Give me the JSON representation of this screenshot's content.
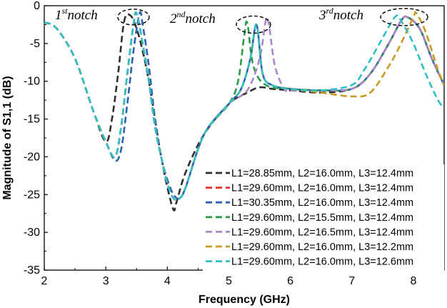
{
  "chart_data": {
    "type": "line",
    "xlabel": "Frequency (GHz)",
    "ylabel": "Magnitude of S1,1 (dB)",
    "xlim": [
      2,
      8.5
    ],
    "ylim": [
      -35,
      0
    ],
    "x_ticks": [
      "2",
      "3",
      "4",
      "5",
      "6",
      "7",
      "8"
    ],
    "y_ticks": [
      "0",
      "-5",
      "-10",
      "-15",
      "-20",
      "-25",
      "-30",
      "-35"
    ],
    "grid": false,
    "legend_position": "bottom-right",
    "line_style": "dashed",
    "annotations": [
      {
        "base": "1",
        "sup": "st",
        "text": "notch"
      },
      {
        "base": "2",
        "sup": "nd",
        "text": "notch"
      },
      {
        "base": "3",
        "sup": "rd",
        "text": "notch"
      }
    ],
    "series": [
      {
        "name": "L1=28.85mm, L2=16.0mm, L3=12.4mm",
        "color": "#2f2f2f",
        "x": [
          2.0,
          2.2,
          2.5,
          2.8,
          3.0,
          3.1,
          3.2,
          3.3,
          3.4,
          3.5,
          3.6,
          3.7,
          3.8,
          3.9,
          4.0,
          4.1,
          4.15,
          4.3,
          4.6,
          5.0,
          5.3,
          5.5,
          5.7,
          6.0,
          6.5,
          7.0,
          7.3,
          7.6,
          7.8,
          7.9,
          8.1,
          8.3,
          8.5
        ],
        "y": [
          -2.2,
          -3,
          -7,
          -14,
          -18,
          -15,
          -9,
          -2,
          -1.3,
          -3,
          -6,
          -10,
          -15,
          -20,
          -24,
          -27,
          -26,
          -22,
          -17,
          -13,
          -11.5,
          -10.8,
          -11,
          -11.2,
          -11.5,
          -11,
          -9,
          -5,
          -2,
          -1.5,
          -3,
          -7,
          -10.5
        ]
      },
      {
        "name": "L1=29.60mm, L2=16.0mm, L3=12.4mm",
        "color": "#e8312a",
        "x": [
          2.0,
          2.2,
          2.5,
          2.8,
          3.0,
          3.15,
          3.25,
          3.35,
          3.45,
          3.5,
          3.6,
          3.7,
          3.8,
          3.9,
          4.0,
          4.1,
          4.2,
          4.3,
          4.6,
          5.0,
          5.2,
          5.35,
          5.45,
          5.55,
          5.7,
          6.0,
          6.5,
          7.0,
          7.3,
          7.6,
          7.8,
          7.9,
          8.1,
          8.3,
          8.5
        ],
        "y": [
          -2.2,
          -3,
          -7,
          -14,
          -18,
          -20,
          -16,
          -9,
          -2.5,
          -1,
          -5,
          -10,
          -16,
          -20,
          -23.5,
          -25.5,
          -25.5,
          -24,
          -17,
          -13,
          -11,
          -7,
          -2.5,
          -9,
          -10.5,
          -11,
          -11.2,
          -11,
          -9,
          -5,
          -2,
          -1.5,
          -3,
          -7,
          -10.5
        ]
      },
      {
        "name": "L1=30.35mm, L2=16.0mm, L3=12.4mm",
        "color": "#2e5fb3",
        "x": [
          2.0,
          2.2,
          2.5,
          2.8,
          3.0,
          3.15,
          3.25,
          3.35,
          3.45,
          3.55,
          3.6,
          3.7,
          3.8,
          3.9,
          4.0,
          4.1,
          4.2,
          4.3,
          4.6,
          5.0,
          5.2,
          5.35,
          5.45,
          5.55,
          5.7,
          6.0,
          6.5,
          7.0,
          7.3,
          7.6,
          7.8,
          7.9,
          8.1,
          8.3,
          8.5
        ],
        "y": [
          -2.2,
          -3,
          -7,
          -14,
          -18,
          -20.5,
          -19,
          -13,
          -6,
          -1,
          -2.5,
          -8,
          -15,
          -20,
          -23,
          -25,
          -25.5,
          -24,
          -17,
          -13,
          -11,
          -7,
          -2.5,
          -9,
          -10.5,
          -11,
          -11.2,
          -11,
          -9,
          -5,
          -2,
          -1.5,
          -3,
          -7,
          -10.5
        ]
      },
      {
        "name": "L1=29.60mm, L2=15.5mm, L3=12.4mm",
        "color": "#2d9a4a",
        "x": [
          2.0,
          2.2,
          2.5,
          2.8,
          3.0,
          3.15,
          3.25,
          3.35,
          3.45,
          3.5,
          3.6,
          3.7,
          3.8,
          3.9,
          4.0,
          4.1,
          4.2,
          4.3,
          4.6,
          5.0,
          5.15,
          5.25,
          5.3,
          5.4,
          5.6,
          6.0,
          6.5,
          7.0,
          7.3,
          7.6,
          7.8,
          7.9,
          8.1,
          8.3,
          8.5
        ],
        "y": [
          -2.2,
          -3,
          -7,
          -14,
          -18,
          -20,
          -16,
          -9,
          -2.5,
          -1,
          -5,
          -10,
          -16,
          -20,
          -23.5,
          -25.5,
          -25.5,
          -24,
          -17,
          -13,
          -10,
          -4,
          -2.3,
          -8,
          -10.5,
          -11,
          -11.2,
          -11,
          -9,
          -5,
          -2,
          -1.5,
          -3,
          -7,
          -10.5
        ]
      },
      {
        "name": "L1=29.60mm, L2=16.5mm, L3=12.4mm",
        "color": "#a987c8",
        "x": [
          2.0,
          2.2,
          2.5,
          2.8,
          3.0,
          3.15,
          3.25,
          3.35,
          3.45,
          3.5,
          3.6,
          3.7,
          3.8,
          3.9,
          4.0,
          4.1,
          4.2,
          4.3,
          4.6,
          5.0,
          5.3,
          5.5,
          5.6,
          5.65,
          5.75,
          5.9,
          6.0,
          6.5,
          7.0,
          7.3,
          7.6,
          7.8,
          7.9,
          8.1,
          8.3,
          8.5
        ],
        "y": [
          -2.2,
          -3,
          -7,
          -14,
          -18,
          -20,
          -16,
          -9,
          -2.5,
          -1,
          -5,
          -10,
          -16,
          -20,
          -23.5,
          -25.5,
          -25.5,
          -24,
          -17,
          -13,
          -11.2,
          -7,
          -2,
          -2.5,
          -8,
          -11,
          -11.2,
          -11.2,
          -11,
          -9,
          -5,
          -2,
          -1.5,
          -3,
          -7,
          -10.5
        ]
      },
      {
        "name": "L1=29.60mm, L2=16.0mm, L3=12.2mm",
        "color": "#c89a22",
        "x": [
          2.0,
          2.2,
          2.5,
          2.8,
          3.0,
          3.15,
          3.25,
          3.35,
          3.45,
          3.5,
          3.6,
          3.7,
          3.8,
          3.9,
          4.0,
          4.1,
          4.2,
          4.3,
          4.6,
          5.0,
          5.2,
          5.35,
          5.45,
          5.55,
          5.7,
          6.0,
          6.5,
          7.0,
          7.3,
          7.6,
          7.8,
          8.0,
          8.05,
          8.2,
          8.4,
          8.5
        ],
        "y": [
          -2.2,
          -3,
          -7,
          -14,
          -18,
          -20,
          -16,
          -9,
          -2.5,
          -1,
          -5,
          -10,
          -16,
          -20,
          -23.5,
          -25.5,
          -25.5,
          -24,
          -17,
          -13,
          -11,
          -7,
          -2.5,
          -9,
          -10.5,
          -11,
          -11.5,
          -12,
          -11.5,
          -8,
          -5,
          -1.5,
          -1,
          -3.5,
          -8.5,
          -10.5
        ]
      },
      {
        "name": "L1=29.60mm, L2=16.0mm, L3=12.6mm",
        "color": "#2fbfc4",
        "x": [
          2.0,
          2.2,
          2.5,
          2.8,
          3.0,
          3.15,
          3.25,
          3.35,
          3.45,
          3.5,
          3.6,
          3.7,
          3.8,
          3.9,
          4.0,
          4.1,
          4.2,
          4.3,
          4.6,
          5.0,
          5.2,
          5.35,
          5.45,
          5.55,
          5.7,
          6.0,
          6.5,
          7.0,
          7.2,
          7.45,
          7.7,
          7.8,
          8.0,
          8.2,
          8.4,
          8.5
        ],
        "y": [
          -2.2,
          -3,
          -7,
          -14,
          -18,
          -20,
          -16,
          -9,
          -2.5,
          -1,
          -5,
          -10,
          -16,
          -20,
          -23.5,
          -25.5,
          -25.5,
          -24,
          -17,
          -13,
          -11,
          -7,
          -2.5,
          -9,
          -10.5,
          -11,
          -11.2,
          -10.5,
          -8.5,
          -5,
          -1.5,
          -2,
          -5,
          -9,
          -12.5,
          -13.5
        ]
      }
    ]
  }
}
